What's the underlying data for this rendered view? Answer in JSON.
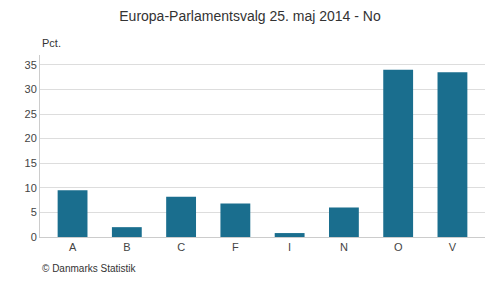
{
  "chart_data": {
    "type": "bar",
    "title": "Europa-Parlamentsvalg 25. maj 2014 - No",
    "ylabel": "Pct.",
    "categories": [
      "A",
      "B",
      "C",
      "F",
      "I",
      "N",
      "O",
      "V"
    ],
    "values": [
      9.5,
      2.0,
      8.2,
      6.8,
      0.8,
      6.0,
      34.0,
      33.5
    ],
    "color": "#1a6e8e",
    "ylim": [
      0,
      37
    ],
    "yticks": [
      0,
      5,
      10,
      15,
      20,
      25,
      30,
      35
    ],
    "grid": true,
    "annotations": [
      "© Danmarks Statistik"
    ]
  }
}
